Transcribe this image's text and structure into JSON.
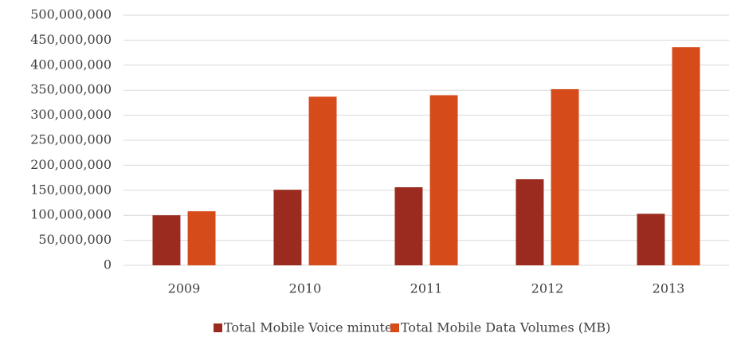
{
  "chart_data": {
    "type": "bar",
    "categories": [
      "2009",
      "2010",
      "2011",
      "2012",
      "2013"
    ],
    "series": [
      {
        "name": "Total Mobile Voice minutes",
        "color": "#9c2b1f",
        "values": [
          100000000,
          151000000,
          156000000,
          172000000,
          103000000
        ]
      },
      {
        "name": "Total Mobile Data Volumes (MB)",
        "color": "#d54b1a",
        "values": [
          108000000,
          337000000,
          340000000,
          352000000,
          436000000
        ]
      }
    ],
    "ylim": [
      0,
      500000000
    ],
    "yticks": [
      0,
      {
        "value": 50000000,
        "label": "50,000,000"
      },
      {
        "value": 100000000,
        "label": "100,000,000"
      },
      {
        "value": 150000000,
        "label": "150,000,000"
      },
      {
        "value": 200000000,
        "label": "200,000,000"
      },
      {
        "value": 250000000,
        "label": "250,000,000"
      },
      {
        "value": 300000000,
        "label": "300,000,000"
      },
      {
        "value": 350000000,
        "label": "350,000,000"
      },
      {
        "value": 400000000,
        "label": "400,000,000"
      },
      {
        "value": 450000000,
        "label": "450,000,000"
      },
      {
        "value": 500000000,
        "label": "500,000,000"
      }
    ],
    "grid": true,
    "legend": "bottom"
  }
}
